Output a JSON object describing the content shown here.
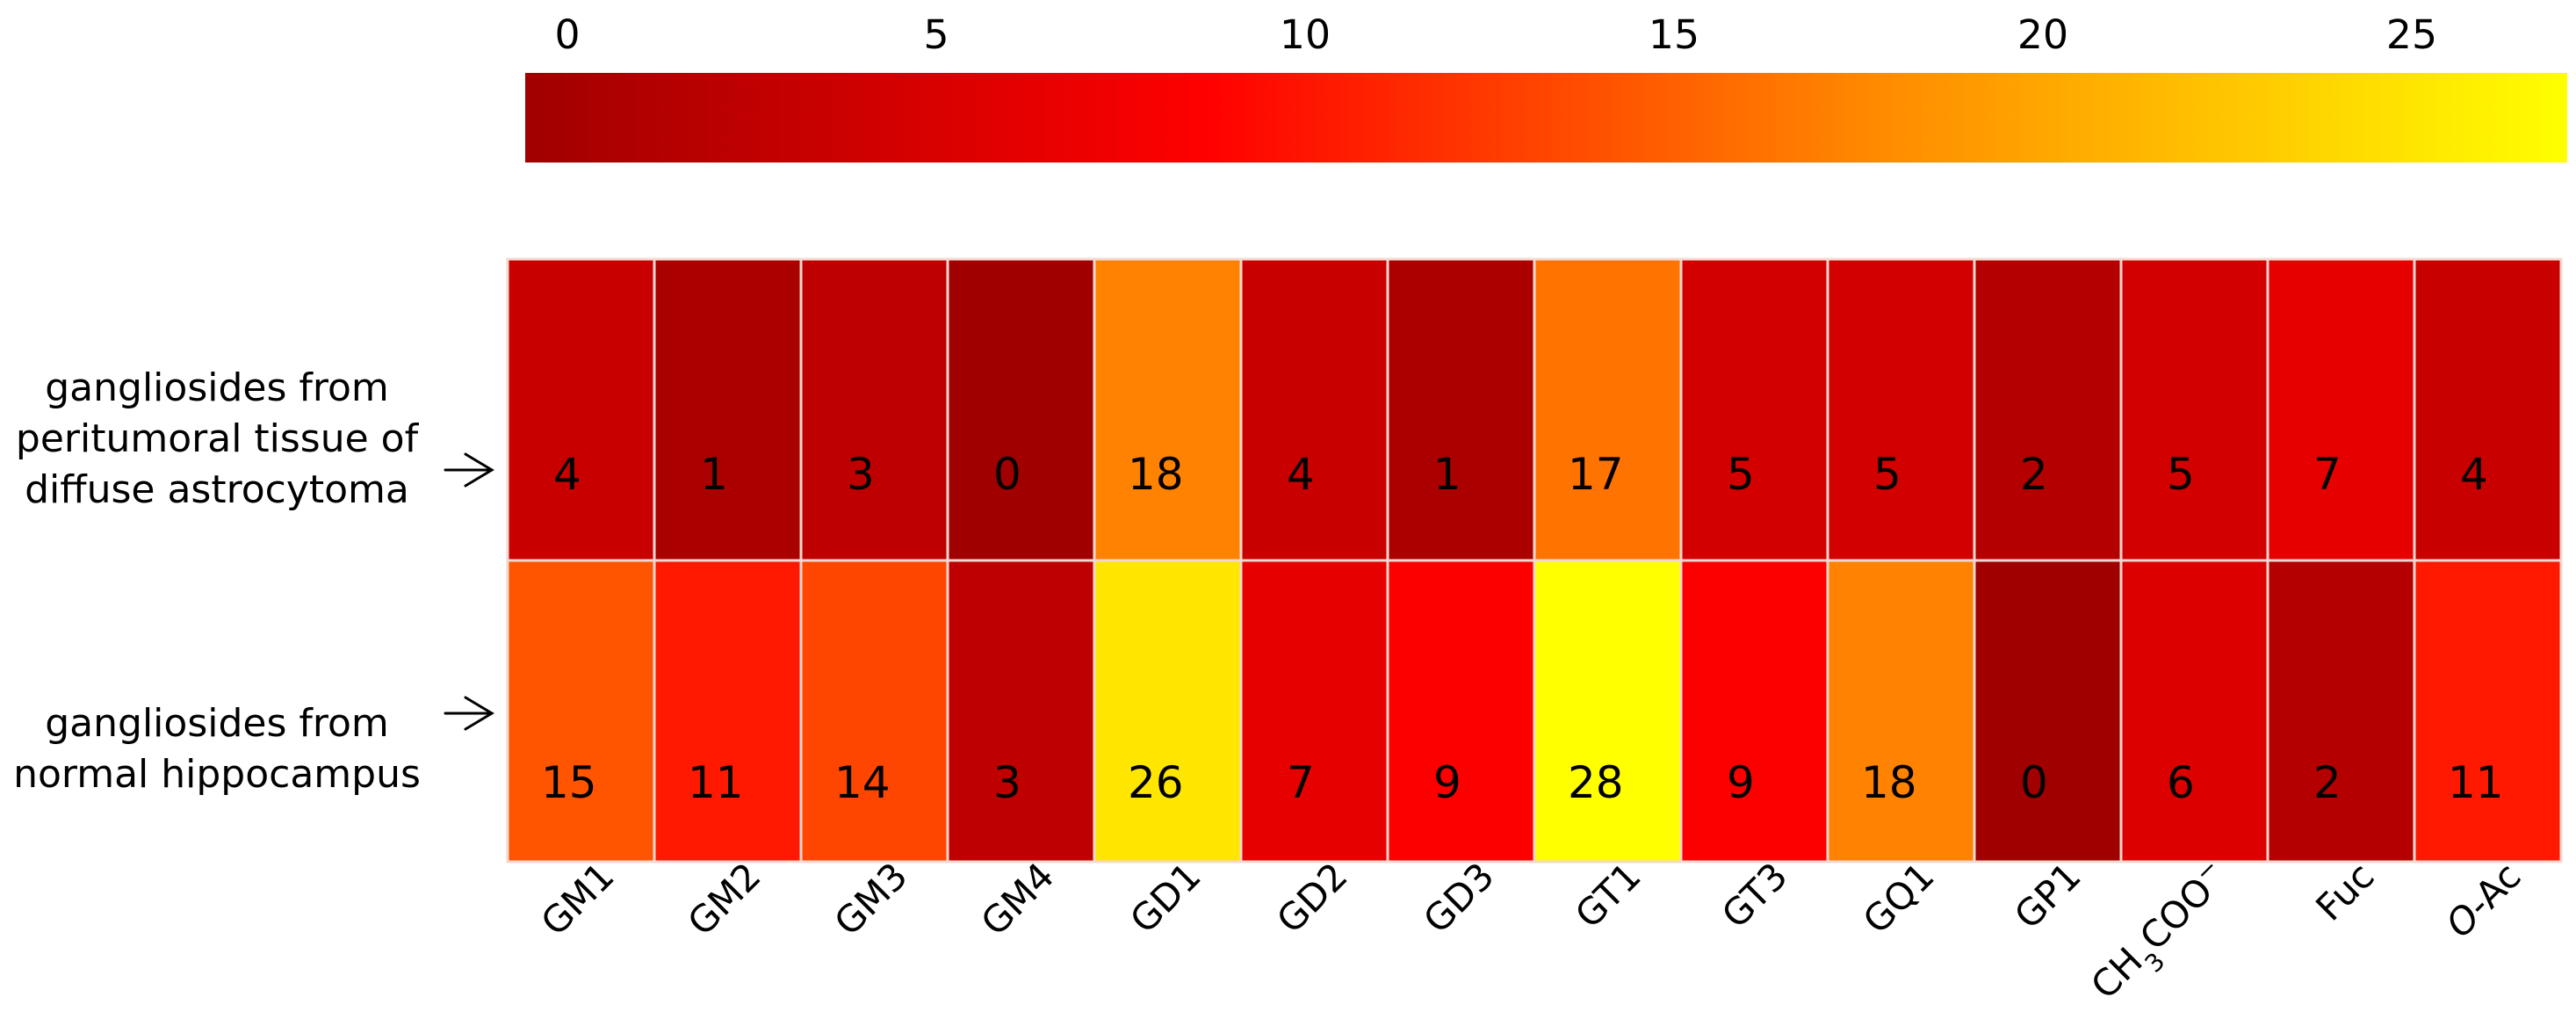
{
  "chart_data": {
    "type": "heatmap",
    "colorbar": {
      "min": 0,
      "max": 28,
      "ticks": [
        "0",
        "5",
        "10",
        "15",
        "20",
        "25"
      ],
      "colors": [
        "#a00000",
        "#ff0000",
        "#ff8c00",
        "#ffff00"
      ]
    },
    "rows": [
      {
        "label_lines": [
          "gangliosides from",
          "peritumoral tissue of",
          "diffuse astrocytoma"
        ],
        "values": [
          4,
          1,
          3,
          0,
          18,
          4,
          1,
          17,
          5,
          5,
          2,
          5,
          7,
          4
        ]
      },
      {
        "label_lines": [
          "gangliosides from",
          "normal hippocampus"
        ],
        "values": [
          15,
          11,
          14,
          3,
          26,
          7,
          9,
          28,
          9,
          18,
          0,
          6,
          2,
          11
        ]
      }
    ],
    "columns": [
      {
        "text": "GM1"
      },
      {
        "text": "GM2"
      },
      {
        "text": "GM3"
      },
      {
        "text": "GM4"
      },
      {
        "text": "GD1"
      },
      {
        "text": "GD2"
      },
      {
        "text": "GD3"
      },
      {
        "text": "GT1"
      },
      {
        "text": "GT3"
      },
      {
        "text": "GQ1"
      },
      {
        "text": "GP1"
      },
      {
        "parts": [
          {
            "t": "CH"
          },
          {
            "t": "3",
            "sub": true
          },
          {
            "t": "COO"
          },
          {
            "t": "−",
            "sup": true
          }
        ]
      },
      {
        "text": "Fuc"
      },
      {
        "parts": [
          {
            "t": "O",
            "italic": true
          },
          {
            "t": "-Ac"
          }
        ]
      }
    ]
  }
}
